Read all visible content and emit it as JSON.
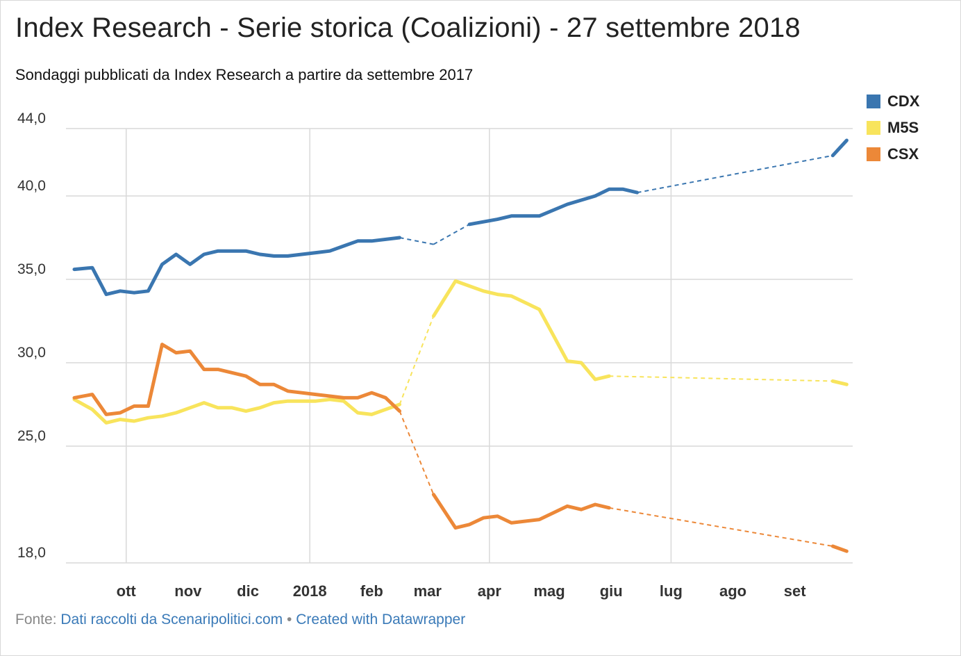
{
  "title": "Index Research - Serie storica (Coalizioni) - 27 settembre 2018",
  "subtitle": "Sondaggi pubblicati da Index Research a partire da settembre 2017",
  "footer": {
    "prefix": "Fonte:",
    "source_link": "Dati raccolti da Scenaripolitici.com",
    "separator": "•",
    "credit_link": "Created with Datawrapper"
  },
  "colors": {
    "CDX": "#3a76b0",
    "M5S": "#f8e45c",
    "CSX": "#ec8838",
    "grid": "#d9d9d9"
  },
  "chart_data": {
    "type": "line",
    "y_ticks": [
      {
        "value": 44,
        "label": "44,0"
      },
      {
        "value": 40,
        "label": "40,0"
      },
      {
        "value": 35,
        "label": "35,0"
      },
      {
        "value": 30,
        "label": "30,0"
      },
      {
        "value": 25,
        "label": "25,0"
      },
      {
        "value": 18,
        "label": "18,0"
      }
    ],
    "ylim": [
      18,
      43.8
    ],
    "x_ticks": [
      {
        "date": "2017-10-01",
        "label": "ott"
      },
      {
        "date": "2017-11-01",
        "label": "nov"
      },
      {
        "date": "2017-12-01",
        "label": "dic"
      },
      {
        "date": "2018-01-01",
        "label": "2018"
      },
      {
        "date": "2018-02-01",
        "label": "feb"
      },
      {
        "date": "2018-03-01",
        "label": "mar"
      },
      {
        "date": "2018-04-01",
        "label": "apr"
      },
      {
        "date": "2018-05-01",
        "label": "mag"
      },
      {
        "date": "2018-06-01",
        "label": "giu"
      },
      {
        "date": "2018-07-01",
        "label": "lug"
      },
      {
        "date": "2018-08-01",
        "label": "ago"
      },
      {
        "date": "2018-09-01",
        "label": "set"
      }
    ],
    "x_gridlines": [
      "2017-10-01",
      "2018-01-01",
      "2018-04-01",
      "2018-07-01"
    ],
    "xlim": [
      "2017-09-05",
      "2018-09-30"
    ],
    "legend_position": "top-right",
    "series": [
      {
        "name": "CDX",
        "points": [
          [
            "2017-09-05",
            35.6
          ],
          [
            "2017-09-14",
            35.7
          ],
          [
            "2017-09-21",
            34.1
          ],
          [
            "2017-09-28",
            34.3
          ],
          [
            "2017-10-05",
            34.2
          ],
          [
            "2017-10-12",
            34.3
          ],
          [
            "2017-10-19",
            35.9
          ],
          [
            "2017-10-26",
            36.5
          ],
          [
            "2017-11-02",
            35.9
          ],
          [
            "2017-11-09",
            36.5
          ],
          [
            "2017-11-16",
            36.7
          ],
          [
            "2017-11-30",
            36.7
          ],
          [
            "2017-12-07",
            36.5
          ],
          [
            "2017-12-14",
            36.4
          ],
          [
            "2017-12-21",
            36.4
          ],
          [
            "2018-01-04",
            36.6
          ],
          [
            "2018-01-11",
            36.7
          ],
          [
            "2018-01-18",
            37.0
          ],
          [
            "2018-01-25",
            37.3
          ],
          [
            "2018-02-01",
            37.3
          ],
          [
            "2018-02-15",
            37.5
          ],
          [
            "2018-03-04",
            37.1
          ],
          [
            "2018-03-22",
            38.3
          ],
          [
            "2018-04-05",
            38.6
          ],
          [
            "2018-04-12",
            38.8
          ],
          [
            "2018-04-26",
            38.8
          ],
          [
            "2018-05-10",
            39.5
          ],
          [
            "2018-05-24",
            40.0
          ],
          [
            "2018-05-31",
            40.4
          ],
          [
            "2018-06-07",
            40.4
          ],
          [
            "2018-06-14",
            40.2
          ],
          [
            "2018-09-20",
            42.4
          ],
          [
            "2018-09-27",
            43.3
          ]
        ]
      },
      {
        "name": "M5S",
        "points": [
          [
            "2017-09-05",
            27.8
          ],
          [
            "2017-09-14",
            27.2
          ],
          [
            "2017-09-21",
            26.4
          ],
          [
            "2017-09-28",
            26.6
          ],
          [
            "2017-10-05",
            26.5
          ],
          [
            "2017-10-12",
            26.7
          ],
          [
            "2017-10-19",
            26.8
          ],
          [
            "2017-10-26",
            27.0
          ],
          [
            "2017-11-02",
            27.3
          ],
          [
            "2017-11-09",
            27.6
          ],
          [
            "2017-11-16",
            27.3
          ],
          [
            "2017-11-23",
            27.3
          ],
          [
            "2017-11-30",
            27.1
          ],
          [
            "2017-12-07",
            27.3
          ],
          [
            "2017-12-14",
            27.6
          ],
          [
            "2017-12-21",
            27.7
          ],
          [
            "2018-01-04",
            27.7
          ],
          [
            "2018-01-11",
            27.8
          ],
          [
            "2018-01-18",
            27.7
          ],
          [
            "2018-01-25",
            27.0
          ],
          [
            "2018-02-01",
            26.9
          ],
          [
            "2018-02-08",
            27.2
          ],
          [
            "2018-02-15",
            27.5
          ],
          [
            "2018-03-04",
            32.8
          ],
          [
            "2018-03-15",
            34.9
          ],
          [
            "2018-03-22",
            34.6
          ],
          [
            "2018-03-29",
            34.3
          ],
          [
            "2018-04-05",
            34.1
          ],
          [
            "2018-04-12",
            34.0
          ],
          [
            "2018-04-26",
            33.2
          ],
          [
            "2018-05-10",
            30.1
          ],
          [
            "2018-05-17",
            30.0
          ],
          [
            "2018-05-24",
            29.0
          ],
          [
            "2018-05-31",
            29.2
          ],
          [
            "2018-09-20",
            28.9
          ],
          [
            "2018-09-27",
            28.7
          ]
        ]
      },
      {
        "name": "CSX",
        "points": [
          [
            "2017-09-05",
            27.9
          ],
          [
            "2017-09-14",
            28.1
          ],
          [
            "2017-09-21",
            26.9
          ],
          [
            "2017-09-28",
            27.0
          ],
          [
            "2017-10-05",
            27.4
          ],
          [
            "2017-10-12",
            27.4
          ],
          [
            "2017-10-19",
            31.1
          ],
          [
            "2017-10-26",
            30.6
          ],
          [
            "2017-11-02",
            30.7
          ],
          [
            "2017-11-09",
            29.6
          ],
          [
            "2017-11-16",
            29.6
          ],
          [
            "2017-11-30",
            29.2
          ],
          [
            "2017-12-07",
            28.7
          ],
          [
            "2017-12-14",
            28.7
          ],
          [
            "2017-12-21",
            28.3
          ],
          [
            "2018-01-04",
            28.1
          ],
          [
            "2018-01-11",
            28.0
          ],
          [
            "2018-01-18",
            27.9
          ],
          [
            "2018-01-25",
            27.9
          ],
          [
            "2018-02-01",
            28.2
          ],
          [
            "2018-02-08",
            27.9
          ],
          [
            "2018-02-15",
            27.1
          ],
          [
            "2018-03-04",
            22.1
          ],
          [
            "2018-03-15",
            20.1
          ],
          [
            "2018-03-22",
            20.3
          ],
          [
            "2018-03-29",
            20.7
          ],
          [
            "2018-04-05",
            20.8
          ],
          [
            "2018-04-12",
            20.4
          ],
          [
            "2018-04-26",
            20.6
          ],
          [
            "2018-05-10",
            21.4
          ],
          [
            "2018-05-17",
            21.2
          ],
          [
            "2018-05-24",
            21.5
          ],
          [
            "2018-05-31",
            21.3
          ],
          [
            "2018-09-20",
            19.0
          ],
          [
            "2018-09-27",
            18.7
          ]
        ]
      }
    ],
    "dashed_gaps": [
      [
        "2018-02-15",
        "2018-03-04"
      ],
      [
        "2018-06-01",
        "2018-09-20"
      ]
    ]
  }
}
